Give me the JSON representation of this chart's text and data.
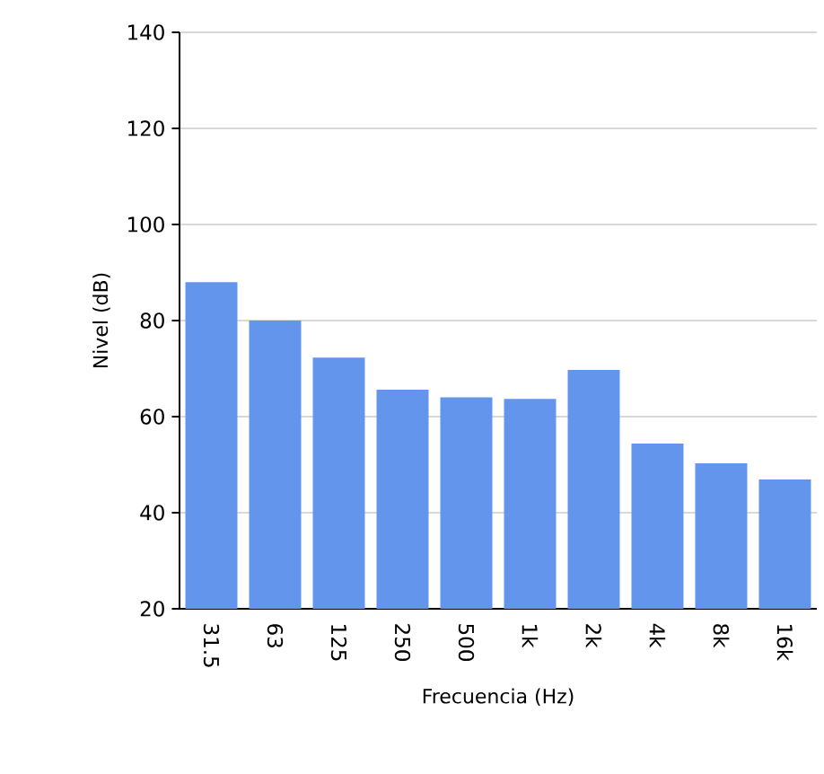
{
  "chart_data": {
    "type": "bar",
    "xlabel": "Frecuencia (Hz)",
    "ylabel": "Nivel (dB)",
    "categories": [
      "31.5",
      "63",
      "125",
      "250",
      "500",
      "1k",
      "2k",
      "4k",
      "8k",
      "16k"
    ],
    "values": [
      88,
      80,
      72.3,
      65.6,
      64,
      63.7,
      69.7,
      54.4,
      50.3,
      46.9
    ],
    "color": "#6495ed",
    "ylim": [
      20,
      140
    ],
    "yticks": [
      20,
      40,
      60,
      80,
      100,
      120,
      140
    ],
    "grid": "y"
  }
}
